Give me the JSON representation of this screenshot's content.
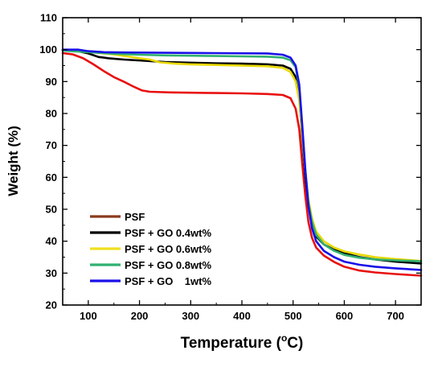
{
  "chart_data": {
    "type": "line",
    "title": "",
    "xlabel": "Temperature (",
    "xlabel_sup": "o",
    "xlabel_unit": "C)",
    "ylabel": "Weight (%)",
    "xlim": [
      50,
      750
    ],
    "ylim": [
      20,
      110
    ],
    "xticks": [
      100,
      200,
      300,
      400,
      500,
      600,
      700
    ],
    "yticks": [
      20,
      30,
      40,
      50,
      60,
      70,
      80,
      90,
      100,
      110
    ],
    "legend_position": "bottom-left",
    "grid": false,
    "series": [
      {
        "name": "PSF",
        "legend_color": "#8B3A1E",
        "color": "#e81010",
        "points": [
          [
            50,
            98.9
          ],
          [
            70,
            98.5
          ],
          [
            90,
            97.3
          ],
          [
            110,
            95.4
          ],
          [
            130,
            93.3
          ],
          [
            150,
            91.4
          ],
          [
            170,
            89.9
          ],
          [
            190,
            88.3
          ],
          [
            205,
            87.2
          ],
          [
            220,
            86.8
          ],
          [
            260,
            86.6
          ],
          [
            300,
            86.5
          ],
          [
            350,
            86.4
          ],
          [
            400,
            86.3
          ],
          [
            450,
            86.1
          ],
          [
            480,
            85.8
          ],
          [
            495,
            84.8
          ],
          [
            505,
            81.5
          ],
          [
            512,
            75
          ],
          [
            518,
            64
          ],
          [
            524,
            54
          ],
          [
            530,
            46
          ],
          [
            537,
            41
          ],
          [
            545,
            38
          ],
          [
            560,
            35.5
          ],
          [
            580,
            33.5
          ],
          [
            600,
            32
          ],
          [
            630,
            30.8
          ],
          [
            660,
            30.2
          ],
          [
            700,
            29.7
          ],
          [
            750,
            29.2
          ]
        ]
      },
      {
        "name": "PSF + GO 0.4wt%",
        "legend_color": "#000000",
        "color": "#000000",
        "points": [
          [
            50,
            99.8
          ],
          [
            80,
            99.5
          ],
          [
            100,
            98.8
          ],
          [
            120,
            97.7
          ],
          [
            140,
            97.3
          ],
          [
            170,
            96.9
          ],
          [
            210,
            96.5
          ],
          [
            250,
            96.1
          ],
          [
            300,
            95.9
          ],
          [
            350,
            95.7
          ],
          [
            400,
            95.6
          ],
          [
            450,
            95.4
          ],
          [
            480,
            95
          ],
          [
            495,
            94
          ],
          [
            505,
            91.5
          ],
          [
            512,
            85
          ],
          [
            518,
            72
          ],
          [
            524,
            60
          ],
          [
            530,
            51
          ],
          [
            537,
            45
          ],
          [
            545,
            41.5
          ],
          [
            560,
            39
          ],
          [
            580,
            37.3
          ],
          [
            600,
            36.2
          ],
          [
            630,
            35
          ],
          [
            660,
            34.3
          ],
          [
            700,
            33.6
          ],
          [
            750,
            33
          ]
        ]
      },
      {
        "name": "PSF + GO 0.6wt%",
        "legend_color": "#f0e020",
        "color": "#e8d800",
        "points": [
          [
            50,
            99.8
          ],
          [
            100,
            99.3
          ],
          [
            150,
            98.5
          ],
          [
            200,
            97.3
          ],
          [
            220,
            96.9
          ],
          [
            240,
            96
          ],
          [
            270,
            95.6
          ],
          [
            300,
            95.4
          ],
          [
            350,
            95.2
          ],
          [
            400,
            95
          ],
          [
            450,
            94.8
          ],
          [
            480,
            94.3
          ],
          [
            495,
            93
          ],
          [
            505,
            90
          ],
          [
            512,
            84
          ],
          [
            518,
            73
          ],
          [
            524,
            62
          ],
          [
            530,
            53
          ],
          [
            537,
            47
          ],
          [
            545,
            43
          ],
          [
            560,
            40
          ],
          [
            580,
            38
          ],
          [
            600,
            36.8
          ],
          [
            630,
            35.8
          ],
          [
            660,
            35
          ],
          [
            700,
            34.4
          ],
          [
            750,
            33.8
          ]
        ]
      },
      {
        "name": "PSF + GO 0.8wt%",
        "legend_color": "#30b070",
        "color": "#30b070",
        "points": [
          [
            50,
            99.7
          ],
          [
            100,
            99.2
          ],
          [
            150,
            98.7
          ],
          [
            200,
            98.4
          ],
          [
            250,
            98.2
          ],
          [
            300,
            98.1
          ],
          [
            350,
            98
          ],
          [
            400,
            97.9
          ],
          [
            450,
            97.8
          ],
          [
            480,
            97.5
          ],
          [
            495,
            96.7
          ],
          [
            505,
            94.5
          ],
          [
            512,
            88
          ],
          [
            518,
            75
          ],
          [
            524,
            62
          ],
          [
            530,
            52
          ],
          [
            537,
            46
          ],
          [
            545,
            42
          ],
          [
            560,
            39
          ],
          [
            580,
            37
          ],
          [
            600,
            35.7
          ],
          [
            630,
            34.8
          ],
          [
            660,
            34.3
          ],
          [
            700,
            34
          ],
          [
            750,
            33.7
          ]
        ]
      },
      {
        "name": "PSF + GO    1wt%",
        "legend_color": "#1a10e8",
        "color": "#1a10e8",
        "points": [
          [
            50,
            100
          ],
          [
            80,
            100
          ],
          [
            100,
            99.5
          ],
          [
            130,
            99.2
          ],
          [
            170,
            99.1
          ],
          [
            250,
            99
          ],
          [
            350,
            98.9
          ],
          [
            450,
            98.8
          ],
          [
            480,
            98.4
          ],
          [
            495,
            97.5
          ],
          [
            505,
            95
          ],
          [
            512,
            89
          ],
          [
            518,
            76
          ],
          [
            524,
            62
          ],
          [
            530,
            51
          ],
          [
            537,
            44
          ],
          [
            545,
            40
          ],
          [
            560,
            37
          ],
          [
            580,
            35
          ],
          [
            600,
            33.6
          ],
          [
            630,
            32.6
          ],
          [
            660,
            32
          ],
          [
            700,
            31.5
          ],
          [
            750,
            31
          ]
        ]
      }
    ]
  }
}
